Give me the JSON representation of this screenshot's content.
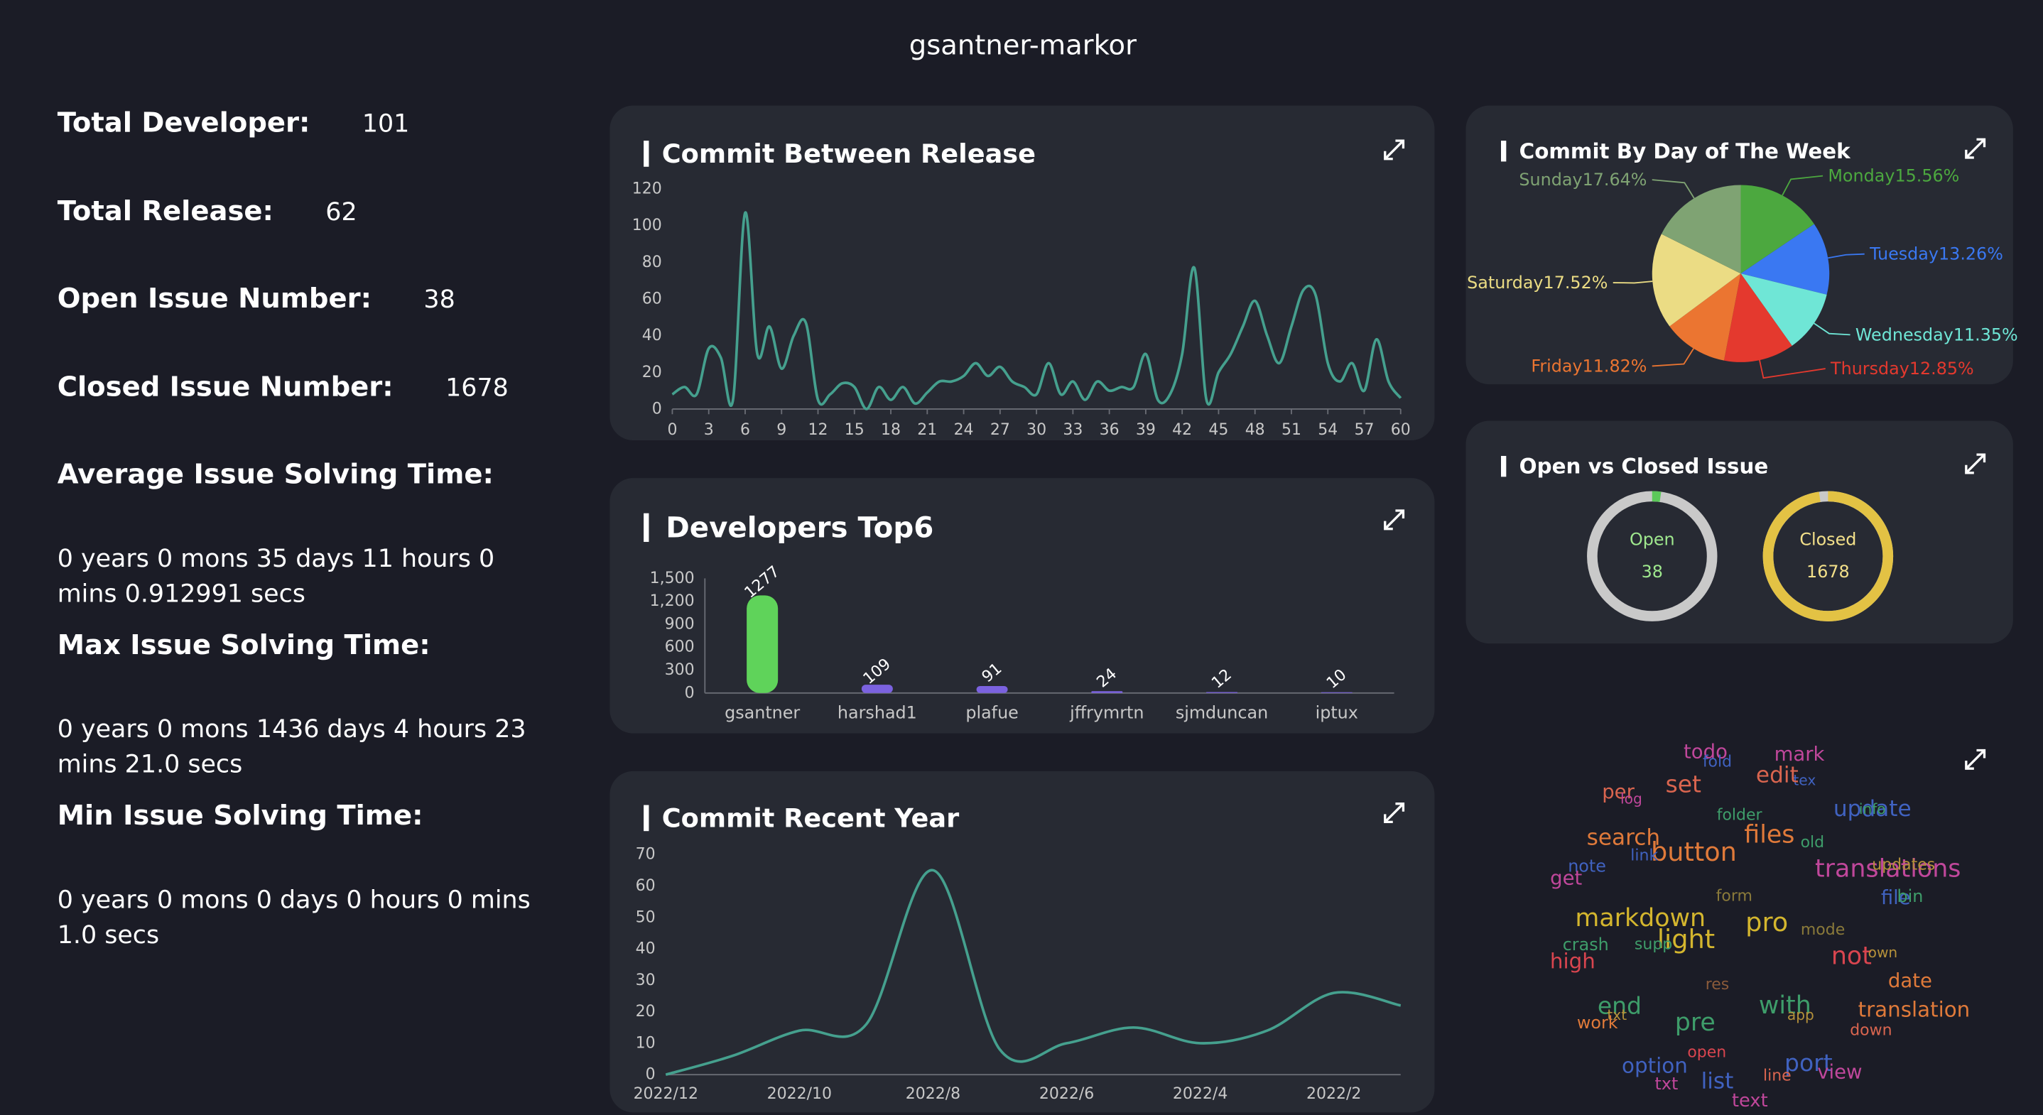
{
  "title": "gsantner-markor",
  "stats": [
    {
      "label": "Total Developer:",
      "value": 101
    },
    {
      "label": "Total Release:",
      "value": 62
    },
    {
      "label": "Open Issue Number:",
      "value": 38
    },
    {
      "label": "Closed Issue Number:",
      "value": 1678
    }
  ],
  "times": [
    {
      "label": "Average Issue Solving Time:",
      "value": "0 years 0 mons 35 days 11 hours 0 mins 0.912991 secs"
    },
    {
      "label": "Max Issue Solving Time:",
      "value": "0 years 0 mons 1436 days 4 hours 23 mins 21.0 secs"
    },
    {
      "label": "Min Issue Solving Time:",
      "value": "0 years 0 mons 0 days 0 hours 0 mins 1.0 secs"
    }
  ],
  "chart_data": [
    {
      "type": "line",
      "title": "Commit Between Release",
      "color": "#45a08e",
      "x": [
        0,
        1,
        2,
        3,
        4,
        5,
        6,
        7,
        8,
        9,
        10,
        11,
        12,
        13,
        14,
        15,
        16,
        17,
        18,
        19,
        20,
        21,
        22,
        23,
        24,
        25,
        26,
        27,
        28,
        29,
        30,
        31,
        32,
        33,
        34,
        35,
        36,
        37,
        38,
        39,
        40,
        41,
        42,
        43,
        44,
        45,
        46,
        47,
        48,
        49,
        50,
        51,
        52,
        53,
        54,
        55,
        56,
        57,
        58,
        59,
        60
      ],
      "values": [
        8,
        12,
        8,
        33,
        28,
        5,
        107,
        30,
        45,
        22,
        40,
        47,
        5,
        8,
        14,
        12,
        0,
        12,
        5,
        12,
        3,
        9,
        15,
        15,
        18,
        25,
        18,
        23,
        15,
        12,
        8,
        25,
        8,
        15,
        5,
        15,
        10,
        12,
        12,
        30,
        5,
        8,
        30,
        77,
        5,
        20,
        30,
        45,
        59,
        40,
        25,
        45,
        65,
        62,
        25,
        15,
        25,
        10,
        38,
        15,
        6
      ],
      "xlim": [
        0,
        60
      ],
      "xticks": [
        0,
        3,
        6,
        9,
        12,
        15,
        18,
        21,
        24,
        27,
        30,
        33,
        36,
        39,
        42,
        45,
        48,
        51,
        54,
        57,
        60
      ],
      "ylim": [
        0,
        120
      ],
      "yticks": [
        0,
        20,
        40,
        60,
        80,
        100,
        120
      ]
    },
    {
      "type": "bar",
      "title": "Developers Top6",
      "categories": [
        "gsantner",
        "harshad1",
        "plafue",
        "jffrymrtn",
        "sjmduncan",
        "iptux"
      ],
      "values": [
        1277,
        109,
        91,
        24,
        12,
        10
      ],
      "colors": [
        "#5fd35a",
        "#7b62e0",
        "#7b62e0",
        "#7b62e0",
        "#7b62e0",
        "#7b62e0"
      ],
      "ylim": [
        0,
        1500
      ],
      "yticks": [
        0,
        300,
        600,
        900,
        {
          "value": 1200,
          "label": "1,200"
        },
        {
          "value": 1500,
          "label": "1,500"
        }
      ]
    },
    {
      "type": "line",
      "title": "Commit Recent Year",
      "color": "#45a08e",
      "categories": [
        "2022/12",
        null,
        "2022/10",
        null,
        "2022/8",
        null,
        "2022/6",
        null,
        "2022/4",
        null,
        "2022/2",
        null
      ],
      "values": [
        0,
        6,
        14,
        16,
        65,
        8,
        10,
        15,
        10,
        14,
        26,
        22
      ],
      "ylim": [
        0,
        70
      ],
      "yticks": [
        0,
        10,
        20,
        30,
        40,
        50,
        60,
        70
      ]
    },
    {
      "type": "pie",
      "title": "Commit By Day of The Week",
      "values": [
        15.56,
        13.26,
        11.35,
        12.85,
        11.82,
        17.52,
        17.64
      ],
      "value_labels": [
        "Monday15.56%",
        "Tuesday13.26%",
        "Wednesday11.35%",
        "Thursday12.85%",
        "Friday11.82%",
        "Saturday17.52%",
        "Sunday17.64%"
      ],
      "colors": [
        "#4ca83f",
        "#3a78f2",
        "#6fe6d6",
        "#e4392e",
        "#eb7531",
        "#ebdc84",
        "#7fa373"
      ]
    },
    {
      "type": "donut",
      "title": "Open vs Closed Issue",
      "series": [
        {
          "name": "Open",
          "value": 38,
          "color": "#5cc95a"
        },
        {
          "name": "Closed",
          "value": 1678,
          "color": "#e3c244"
        }
      ]
    },
    {
      "type": "wordcloud",
      "words": [
        {
          "text": "todo",
          "color": "#c0479b"
        },
        {
          "text": "fold",
          "color": "#4062c0"
        },
        {
          "text": "mark",
          "color": "#c0479b"
        },
        {
          "text": "tex",
          "color": "#4062c0"
        },
        {
          "text": "edit",
          "color": "#d9654f"
        },
        {
          "text": "per",
          "color": "#d9654f"
        },
        {
          "text": "log",
          "color": "#c0479b"
        },
        {
          "text": "set",
          "color": "#d9654f"
        },
        {
          "text": "folder",
          "color": "#3e9d6a"
        },
        {
          "text": "update",
          "color": "#4062c0"
        },
        {
          "text": "info",
          "color": "#3e9d6a"
        },
        {
          "text": "search",
          "color": "#e07a3a"
        },
        {
          "text": "files",
          "color": "#e07a3a"
        },
        {
          "text": "old",
          "color": "#3e9d6a"
        },
        {
          "text": "button",
          "color": "#e07a3a"
        },
        {
          "text": "link",
          "color": "#4062c0"
        },
        {
          "text": "note",
          "color": "#4062c0"
        },
        {
          "text": "translations",
          "color": "#c0479b"
        },
        {
          "text": "updates",
          "color": "#b5913a"
        },
        {
          "text": "get",
          "color": "#c0479b"
        },
        {
          "text": "file",
          "color": "#4062c0"
        },
        {
          "text": "bin",
          "color": "#3e9d6a"
        },
        {
          "text": "form",
          "color": "#8a7a3a"
        },
        {
          "text": "markdown",
          "color": "#d4b62e"
        },
        {
          "text": "pro",
          "color": "#d4b62e"
        },
        {
          "text": "mode",
          "color": "#8a7a3a"
        },
        {
          "text": "light",
          "color": "#d4b62e"
        },
        {
          "text": "crash",
          "color": "#3e9d6a"
        },
        {
          "text": "supp",
          "color": "#3e9d6a"
        },
        {
          "text": "not",
          "color": "#d9454f"
        },
        {
          "text": "own",
          "color": "#b5913a"
        },
        {
          "text": "high",
          "color": "#d9454f"
        },
        {
          "text": "date",
          "color": "#e07a3a"
        },
        {
          "text": "res",
          "color": "#8a5a3a"
        },
        {
          "text": "end",
          "color": "#3e9d6a"
        },
        {
          "text": "txt",
          "color": "#b5913a"
        },
        {
          "text": "with",
          "color": "#3e9d6a"
        },
        {
          "text": "app",
          "color": "#b5913a"
        },
        {
          "text": "translation",
          "color": "#e07a3a"
        },
        {
          "text": "work",
          "color": "#e07a3a"
        },
        {
          "text": "pre",
          "color": "#3e9d6a"
        },
        {
          "text": "down",
          "color": "#d9654f"
        },
        {
          "text": "open",
          "color": "#d9454f"
        },
        {
          "text": "option",
          "color": "#4062c0"
        },
        {
          "text": "port",
          "color": "#4062c0"
        },
        {
          "text": "view",
          "color": "#c0479b"
        },
        {
          "text": "txt",
          "color": "#c0479b"
        },
        {
          "text": "list",
          "color": "#4062c0"
        },
        {
          "text": "line",
          "color": "#d9654f"
        },
        {
          "text": "text",
          "color": "#c0479b"
        }
      ]
    }
  ]
}
